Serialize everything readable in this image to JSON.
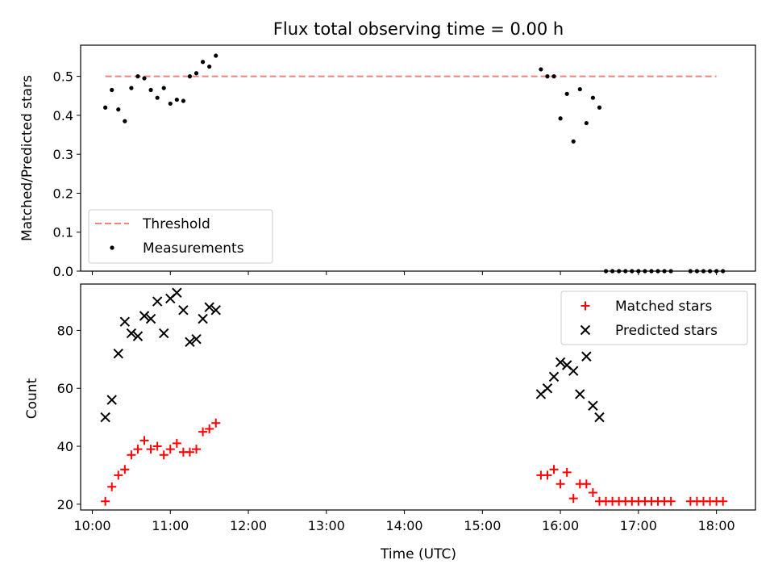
{
  "figure": {
    "title": "Flux total observing time = 0.00 h",
    "xlabel": "Time (UTC)",
    "x_ticks": [
      "10:00",
      "11:00",
      "12:00",
      "13:00",
      "14:00",
      "15:00",
      "16:00",
      "17:00",
      "18:00"
    ]
  },
  "chart_data": [
    {
      "type": "scatter",
      "panel": "top",
      "ylabel": "Matched/Predicted stars",
      "xlim": [
        "09:51",
        "18:30"
      ],
      "ylim": [
        0.0,
        0.58
      ],
      "y_ticks": [
        "0.0",
        "0.1",
        "0.2",
        "0.3",
        "0.4",
        "0.5"
      ],
      "legend": {
        "placement": "lower-left",
        "entries": [
          "Threshold",
          "Measurements"
        ]
      },
      "threshold": {
        "name": "Threshold",
        "value": 0.5,
        "x_start": "10:10",
        "x_end": "18:00",
        "color": "#f08080",
        "style": "dashed"
      },
      "series": [
        {
          "name": "Measurements",
          "color": "#000000",
          "marker": "dot",
          "x": [
            "10:10",
            "10:15",
            "10:20",
            "10:25",
            "10:30",
            "10:35",
            "10:40",
            "10:45",
            "10:50",
            "10:55",
            "11:00",
            "11:05",
            "11:10",
            "11:15",
            "11:20",
            "11:25",
            "11:30",
            "11:35",
            "15:45",
            "15:50",
            "15:55",
            "16:00",
            "16:05",
            "16:10",
            "16:15",
            "16:20",
            "16:25",
            "16:30",
            "16:35",
            "16:40",
            "16:45",
            "16:50",
            "16:55",
            "17:00",
            "17:05",
            "17:10",
            "17:15",
            "17:20",
            "17:25",
            "17:40",
            "17:45",
            "17:50",
            "17:55",
            "18:00",
            "18:05"
          ],
          "y": [
            0.42,
            0.465,
            0.415,
            0.385,
            0.47,
            0.5,
            0.495,
            0.465,
            0.445,
            0.47,
            0.43,
            0.44,
            0.437,
            0.5,
            0.508,
            0.537,
            0.525,
            0.553,
            0.518,
            0.5,
            0.5,
            0.392,
            0.455,
            0.333,
            0.467,
            0.38,
            0.445,
            0.42,
            0,
            0,
            0,
            0,
            0,
            0,
            0,
            0,
            0,
            0,
            0,
            0,
            0,
            0,
            0,
            0,
            0
          ]
        }
      ]
    },
    {
      "type": "scatter",
      "panel": "bottom",
      "ylabel": "Count",
      "xlim": [
        "09:51",
        "18:30"
      ],
      "ylim": [
        18,
        96
      ],
      "y_ticks": [
        "20",
        "40",
        "60",
        "80"
      ],
      "legend": {
        "placement": "upper-right",
        "entries": [
          "Matched stars",
          "Predicted stars"
        ]
      },
      "series": [
        {
          "name": "Matched stars",
          "color": "#ff0000",
          "marker": "plus",
          "x": [
            "10:10",
            "10:15",
            "10:20",
            "10:25",
            "10:30",
            "10:35",
            "10:40",
            "10:45",
            "10:50",
            "10:55",
            "11:00",
            "11:05",
            "11:10",
            "11:15",
            "11:20",
            "11:25",
            "11:30",
            "11:35",
            "15:45",
            "15:50",
            "15:55",
            "16:00",
            "16:05",
            "16:10",
            "16:15",
            "16:20",
            "16:25",
            "16:30",
            "16:35",
            "16:40",
            "16:45",
            "16:50",
            "16:55",
            "17:00",
            "17:05",
            "17:10",
            "17:15",
            "17:20",
            "17:25",
            "17:40",
            "17:45",
            "17:50",
            "17:55",
            "18:00",
            "18:05"
          ],
          "y": [
            21,
            26,
            30,
            32,
            37,
            39,
            42,
            39,
            40,
            37,
            39,
            41,
            38,
            38,
            39,
            45,
            46,
            48,
            30,
            30,
            32,
            27,
            31,
            22,
            27,
            27,
            24,
            21,
            21,
            21,
            21,
            21,
            21,
            21,
            21,
            21,
            21,
            21,
            21,
            21,
            21,
            21,
            21,
            21,
            21
          ]
        },
        {
          "name": "Predicted stars",
          "color": "#000000",
          "marker": "x",
          "x": [
            "10:10",
            "10:15",
            "10:20",
            "10:25",
            "10:30",
            "10:35",
            "10:40",
            "10:45",
            "10:50",
            "10:55",
            "11:00",
            "11:05",
            "11:10",
            "11:15",
            "11:20",
            "11:25",
            "11:30",
            "11:35",
            "15:45",
            "15:50",
            "15:55",
            "16:00",
            "16:05",
            "16:10",
            "16:15",
            "16:20",
            "16:25",
            "16:30"
          ],
          "y": [
            50,
            56,
            72,
            83,
            79,
            78,
            85,
            84,
            90,
            79,
            91,
            93,
            87,
            76,
            77,
            84,
            88,
            87,
            58,
            60,
            64,
            69,
            68,
            66,
            58,
            71,
            54,
            50
          ]
        }
      ]
    }
  ]
}
